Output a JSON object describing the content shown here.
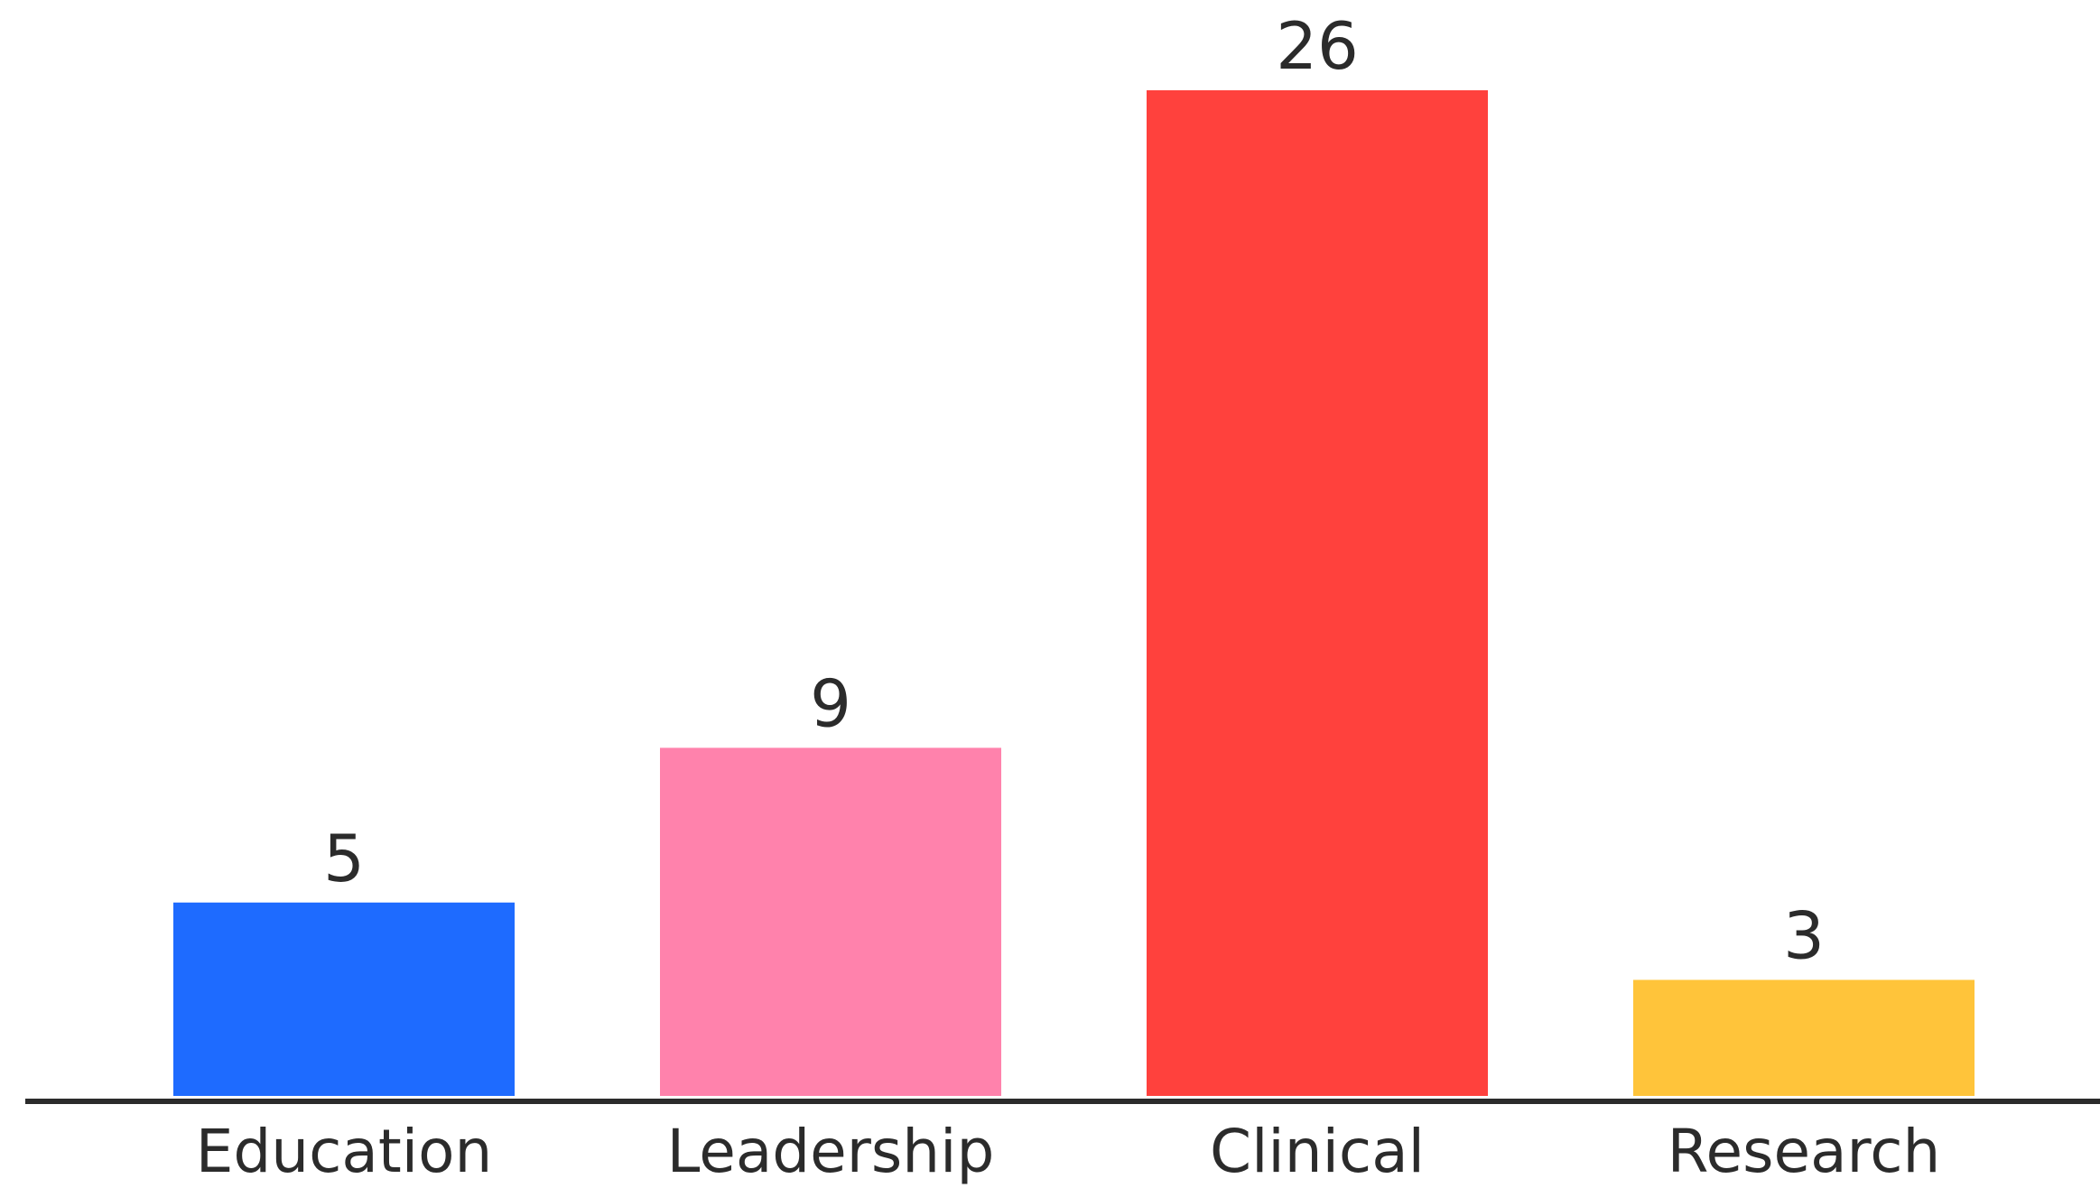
{
  "chart_data": {
    "type": "bar",
    "categories": [
      "Education",
      "Leadership",
      "Clinical",
      "Research"
    ],
    "values": [
      5,
      9,
      26,
      3
    ],
    "colors": [
      "#1E6BFF",
      "#FF82AC",
      "#FF413D",
      "#FFC43A"
    ],
    "title": "",
    "xlabel": "",
    "ylabel": "",
    "ylim": [
      0,
      26
    ],
    "grid": false,
    "legend": "none",
    "data_labels": true
  }
}
